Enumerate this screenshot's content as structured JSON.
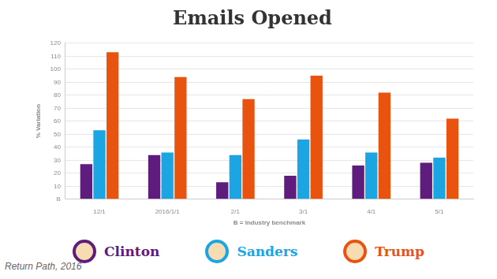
{
  "chart_data": {
    "type": "bar",
    "title": "Emails Opened",
    "xlabel": "B = Industry benchmark",
    "ylabel": "% Variation",
    "annotations": [
      "Return Path, 2016"
    ],
    "categories": [
      "12/1",
      "2016/1/1",
      "2/1",
      "3/1",
      "4/1",
      "5/1"
    ],
    "series": [
      {
        "name": "Clinton",
        "color": "#5e1c7c",
        "values": [
          27,
          34,
          13,
          18,
          26,
          28
        ]
      },
      {
        "name": "Sanders",
        "color": "#1ba6e3",
        "values": [
          53,
          36,
          34,
          46,
          36,
          32
        ]
      },
      {
        "name": "Trump",
        "color": "#e8540f",
        "values": [
          113,
          94,
          77,
          95,
          82,
          62
        ]
      }
    ],
    "ylim": [
      0,
      120
    ],
    "yticks": [
      {
        "value": 0,
        "label": "B"
      },
      10,
      20,
      30,
      40,
      50,
      60,
      70,
      80,
      90,
      100,
      110,
      120
    ],
    "grid": true,
    "legend": "bottom"
  }
}
